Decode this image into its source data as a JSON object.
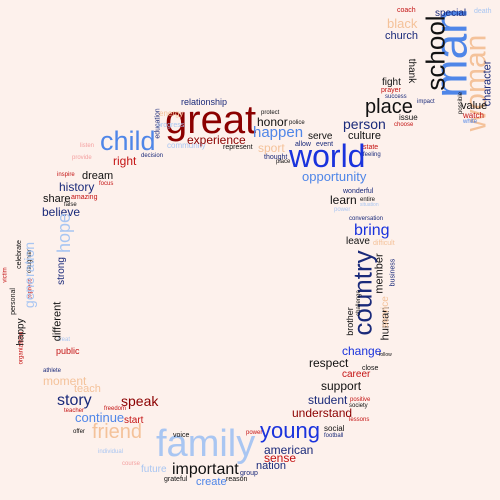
{
  "title": "Word cloud",
  "palette": {
    "background": "#fdf1ec",
    "dark_red": "#8b0000",
    "red": "#c41414",
    "blue": "#1a33dd",
    "light_blue": "#4f86e8",
    "pale_blue": "#a9c6f2",
    "navy": "#1a2a7a",
    "peach": "#f4c29a",
    "black": "#111111"
  },
  "words": [
    {
      "id": "man",
      "text": "man"
    },
    {
      "id": "woman",
      "text": "woman"
    },
    {
      "id": "school",
      "text": "school"
    },
    {
      "id": "special",
      "text": "special"
    },
    {
      "id": "coach",
      "text": "coach"
    },
    {
      "id": "death",
      "text": "death"
    },
    {
      "id": "black",
      "text": "black"
    },
    {
      "id": "church",
      "text": "church"
    },
    {
      "id": "thank",
      "text": "thank"
    },
    {
      "id": "fight",
      "text": "fight"
    },
    {
      "id": "character",
      "text": "character"
    },
    {
      "id": "value",
      "text": "value"
    },
    {
      "id": "prayer",
      "text": "prayer"
    },
    {
      "id": "success",
      "text": "success"
    },
    {
      "id": "impact",
      "text": "impact"
    },
    {
      "id": "possible",
      "text": "possible"
    },
    {
      "id": "watch",
      "text": "watch"
    },
    {
      "id": "white",
      "text": "white"
    },
    {
      "id": "issue",
      "text": "issue"
    },
    {
      "id": "choose",
      "text": "choose"
    },
    {
      "id": "place",
      "text": "place"
    },
    {
      "id": "person",
      "text": "person"
    },
    {
      "id": "culture",
      "text": "culture"
    },
    {
      "id": "state",
      "text": "state"
    },
    {
      "id": "feeling",
      "text": "feeling"
    },
    {
      "id": "great",
      "text": "great"
    },
    {
      "id": "world",
      "text": "world"
    },
    {
      "id": "child",
      "text": "child"
    },
    {
      "id": "relationship",
      "text": "relationship"
    },
    {
      "id": "protect",
      "text": "protect"
    },
    {
      "id": "police",
      "text": "police"
    },
    {
      "id": "community",
      "text": "community"
    },
    {
      "id": "energy",
      "text": "energy"
    },
    {
      "id": "progress",
      "text": "progress"
    },
    {
      "id": "education",
      "text": "education"
    },
    {
      "id": "experience",
      "text": "experience"
    },
    {
      "id": "happen",
      "text": "happen"
    },
    {
      "id": "honor",
      "text": "honor"
    },
    {
      "id": "serve",
      "text": "serve"
    },
    {
      "id": "allow",
      "text": "allow"
    },
    {
      "id": "event",
      "text": "event"
    },
    {
      "id": "sport",
      "text": "sport"
    },
    {
      "id": "thought",
      "text": "thought"
    },
    {
      "id": "place2",
      "text": "place"
    },
    {
      "id": "represent",
      "text": "represent"
    },
    {
      "id": "decision",
      "text": "decision"
    },
    {
      "id": "right",
      "text": "right"
    },
    {
      "id": "opportunity",
      "text": "opportunity"
    },
    {
      "id": "listen",
      "text": "listen"
    },
    {
      "id": "provide",
      "text": "provide"
    },
    {
      "id": "inspire",
      "text": "inspire"
    },
    {
      "id": "dream",
      "text": "dream"
    },
    {
      "id": "focus",
      "text": "focus"
    },
    {
      "id": "history",
      "text": "history"
    },
    {
      "id": "amazing",
      "text": "amazing"
    },
    {
      "id": "share",
      "text": "share"
    },
    {
      "id": "false",
      "text": "false"
    },
    {
      "id": "believe",
      "text": "believe"
    },
    {
      "id": "wonderful",
      "text": "wonderful"
    },
    {
      "id": "learn",
      "text": "learn"
    },
    {
      "id": "entire",
      "text": "entire"
    },
    {
      "id": "situation",
      "text": "situation"
    },
    {
      "id": "power",
      "text": "power"
    },
    {
      "id": "bring",
      "text": "bring"
    },
    {
      "id": "conversation",
      "text": "conversation"
    },
    {
      "id": "leave",
      "text": "leave"
    },
    {
      "id": "difficult",
      "text": "difficult"
    },
    {
      "id": "country",
      "text": "country"
    },
    {
      "id": "member",
      "text": "member"
    },
    {
      "id": "human",
      "text": "human"
    },
    {
      "id": "business",
      "text": "business"
    },
    {
      "id": "service",
      "text": "service"
    },
    {
      "id": "brother",
      "text": "brother"
    },
    {
      "id": "challenge",
      "text": "challenge"
    },
    {
      "id": "respect",
      "text": "respect"
    },
    {
      "id": "change",
      "text": "change"
    },
    {
      "id": "follow",
      "text": "follow"
    },
    {
      "id": "career",
      "text": "career"
    },
    {
      "id": "close",
      "text": "close"
    },
    {
      "id": "support",
      "text": "support"
    },
    {
      "id": "student",
      "text": "student"
    },
    {
      "id": "positive",
      "text": "positive"
    },
    {
      "id": "society",
      "text": "society"
    },
    {
      "id": "understand",
      "text": "understand"
    },
    {
      "id": "lessons",
      "text": "lessons"
    },
    {
      "id": "social",
      "text": "social"
    },
    {
      "id": "football",
      "text": "football"
    },
    {
      "id": "young",
      "text": "young"
    },
    {
      "id": "power2",
      "text": "power"
    },
    {
      "id": "american",
      "text": "american"
    },
    {
      "id": "sense",
      "text": "sense"
    },
    {
      "id": "nation",
      "text": "nation"
    },
    {
      "id": "group",
      "text": "group"
    },
    {
      "id": "important",
      "text": "important"
    },
    {
      "id": "create",
      "text": "create"
    },
    {
      "id": "family",
      "text": "family"
    },
    {
      "id": "future",
      "text": "future"
    },
    {
      "id": "grateful",
      "text": "grateful"
    },
    {
      "id": "reason",
      "text": "reason"
    },
    {
      "id": "friend",
      "text": "friend"
    },
    {
      "id": "voice",
      "text": "voice"
    },
    {
      "id": "speak",
      "text": "speak"
    },
    {
      "id": "start",
      "text": "start"
    },
    {
      "id": "continue",
      "text": "continue"
    },
    {
      "id": "story",
      "text": "story"
    },
    {
      "id": "teach",
      "text": "teach"
    },
    {
      "id": "moment",
      "text": "moment"
    },
    {
      "id": "freedom",
      "text": "freedom"
    },
    {
      "id": "teacher",
      "text": "teacher"
    },
    {
      "id": "offer",
      "text": "offer"
    },
    {
      "id": "individual",
      "text": "individual"
    },
    {
      "id": "course",
      "text": "course"
    },
    {
      "id": "athlete",
      "text": "athlete"
    },
    {
      "id": "public",
      "text": "public"
    },
    {
      "id": "treat",
      "text": "treat"
    },
    {
      "id": "organization",
      "text": "organization"
    },
    {
      "id": "happy",
      "text": "happy"
    },
    {
      "id": "personal",
      "text": "personal"
    },
    {
      "id": "different",
      "text": "different"
    },
    {
      "id": "strong",
      "text": "strong"
    },
    {
      "id": "celebrate",
      "text": "celebrate"
    },
    {
      "id": "daughter",
      "text": "daughter"
    },
    {
      "id": "express",
      "text": "express"
    },
    {
      "id": "victim",
      "text": "victim"
    },
    {
      "id": "generation",
      "text": "generation"
    },
    {
      "id": "hope",
      "text": "hope"
    }
  ]
}
